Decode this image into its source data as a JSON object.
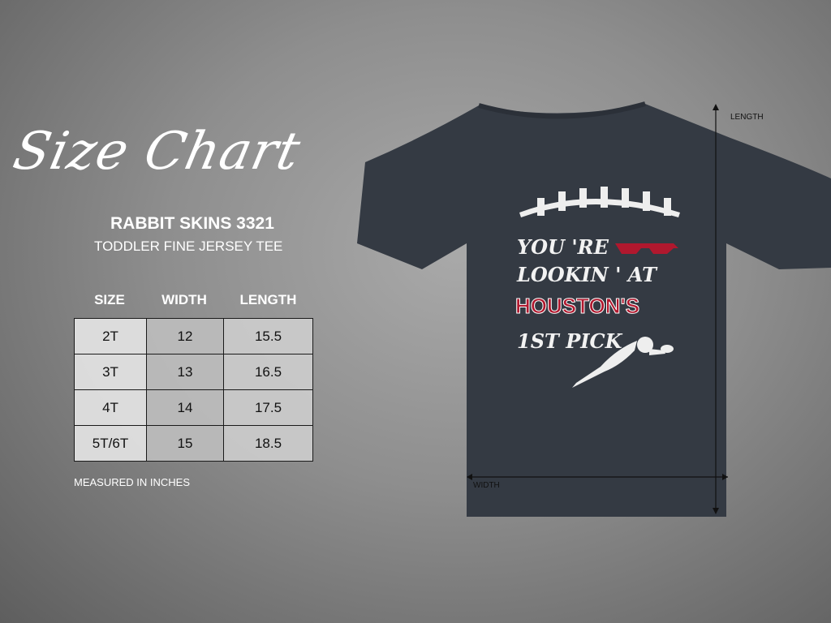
{
  "title": "Size Chart",
  "product": {
    "brand": "RABBIT SKINS 3321",
    "name": "TODDLER FINE JERSEY TEE"
  },
  "table": {
    "headers": [
      "SIZE",
      "WIDTH",
      "LENGTH"
    ],
    "rows": [
      [
        "2T",
        "12",
        "15.5"
      ],
      [
        "3T",
        "13",
        "16.5"
      ],
      [
        "4T",
        "14",
        "17.5"
      ],
      [
        "5T/6T",
        "15",
        "18.5"
      ]
    ]
  },
  "note": "MEASURED IN INCHES",
  "dimensions": {
    "length_label": "LENGTH",
    "width_label": "WIDTH"
  },
  "shirt": {
    "color": "#343a43",
    "lines": [
      "YOU 'RE",
      "LOOKIN ' AT",
      "HOUSTON'S",
      "1ST PICK"
    ],
    "accent": "#b0182e",
    "icons": [
      "football-laces-icon",
      "pixel-sunglasses-icon",
      "diving-football-player-icon"
    ]
  }
}
